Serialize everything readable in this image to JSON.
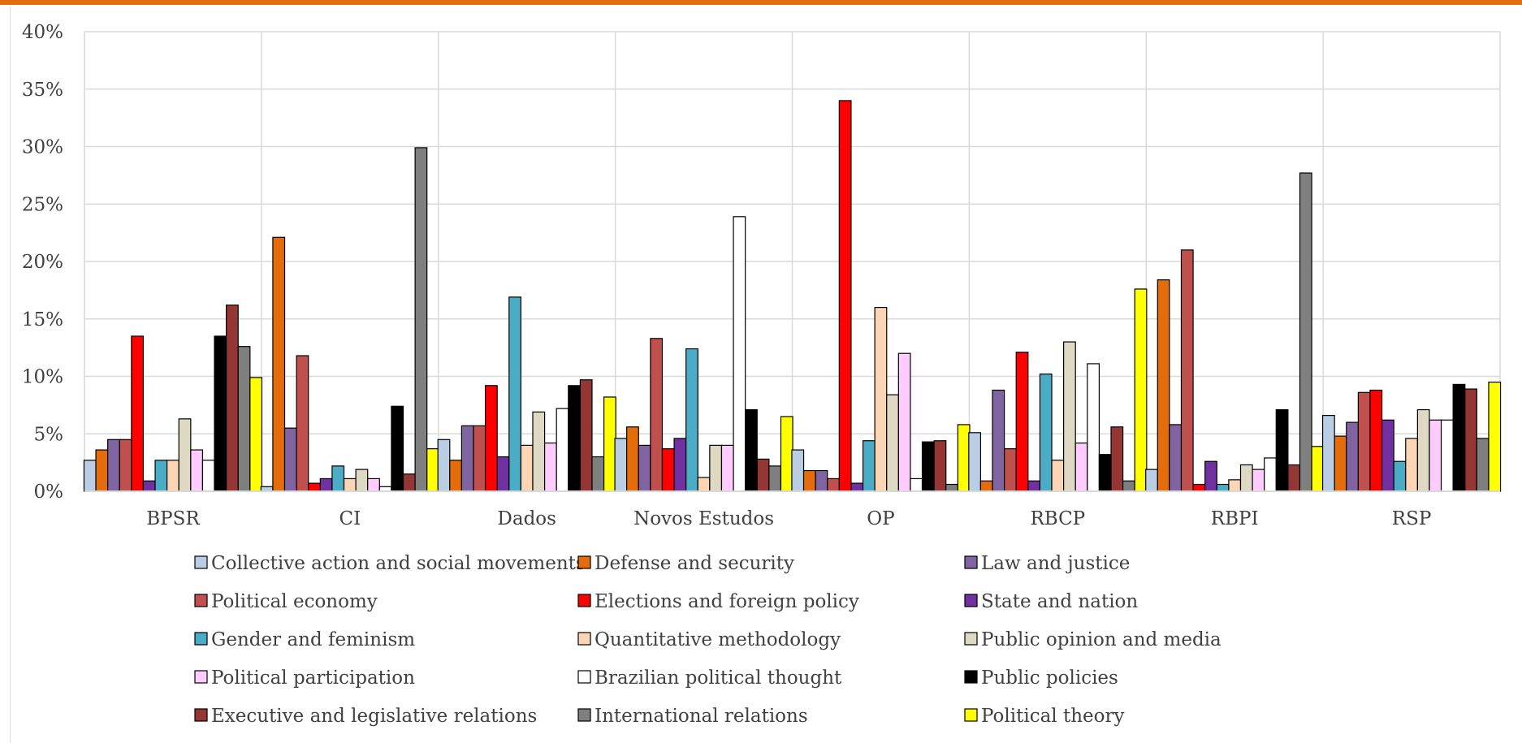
{
  "chart_data": {
    "type": "bar",
    "title": "",
    "xlabel": "",
    "ylabel": "",
    "ylim": [
      0,
      40
    ],
    "y_ticks": [
      "0%",
      "5%",
      "10%",
      "15%",
      "20%",
      "25%",
      "30%",
      "35%",
      "40%"
    ],
    "y_tick_values": [
      0,
      5,
      10,
      15,
      20,
      25,
      30,
      35,
      40
    ],
    "grid": true,
    "legend_position": "bottom",
    "categories": [
      "BPSR",
      "CI",
      "Dados",
      "Novos Estudos",
      "OP",
      "RBCP",
      "RBPI",
      "RSP"
    ],
    "series": [
      {
        "name": "Collective action and social movements",
        "color": "#B9CDE5",
        "values": [
          2.7,
          0.4,
          4.5,
          4.6,
          3.6,
          5.1,
          1.9,
          6.6
        ]
      },
      {
        "name": "Defense and security",
        "color": "#E46C0A",
        "values": [
          3.6,
          22.1,
          2.7,
          5.6,
          1.8,
          0.9,
          18.4,
          4.8
        ]
      },
      {
        "name": "Law and justice",
        "color": "#8064A2",
        "values": [
          4.5,
          5.5,
          5.7,
          4.0,
          1.8,
          8.8,
          5.8,
          6.0
        ]
      },
      {
        "name": "Political economy",
        "color": "#C0504D",
        "values": [
          4.5,
          11.8,
          5.7,
          13.3,
          1.1,
          3.7,
          21.0,
          8.6
        ]
      },
      {
        "name": "Elections and foreign policy",
        "color": "#FF0000",
        "values": [
          13.5,
          0.7,
          9.2,
          3.7,
          34.0,
          12.1,
          0.6,
          8.8
        ]
      },
      {
        "name": "State and nation",
        "color": "#7030A0",
        "values": [
          0.9,
          1.1,
          3.0,
          4.6,
          0.7,
          0.9,
          2.6,
          6.2
        ]
      },
      {
        "name": "Gender and feminism",
        "color": "#4BACC6",
        "values": [
          2.7,
          2.2,
          16.9,
          12.4,
          4.4,
          10.2,
          0.6,
          2.6
        ]
      },
      {
        "name": "Quantitative methodology",
        "color": "#FCD5B5",
        "values": [
          2.7,
          1.1,
          4.0,
          1.2,
          16.0,
          2.7,
          1.0,
          4.6
        ]
      },
      {
        "name": "Public opinion and media",
        "color": "#DDD9C3",
        "values": [
          6.3,
          1.9,
          6.9,
          4.0,
          8.4,
          13.0,
          2.3,
          7.1
        ]
      },
      {
        "name": "Political participation",
        "color": "#FFCCFF",
        "values": [
          3.6,
          1.1,
          4.2,
          4.0,
          12.0,
          4.2,
          1.9,
          6.2
        ]
      },
      {
        "name": "Brazilian political thought",
        "color": "#FFFFFF",
        "values": [
          2.7,
          0.4,
          7.2,
          23.9,
          1.1,
          11.1,
          2.9,
          6.2
        ]
      },
      {
        "name": "Public policies",
        "color": "#000000",
        "values": [
          13.5,
          7.4,
          9.2,
          7.1,
          4.3,
          3.2,
          7.1,
          9.3
        ]
      },
      {
        "name": "Executive and legislative relations",
        "color": "#943634",
        "values": [
          16.2,
          1.5,
          9.7,
          2.8,
          4.4,
          5.6,
          2.3,
          8.9
        ]
      },
      {
        "name": "International relations",
        "color": "#7F7F7F",
        "values": [
          12.6,
          29.9,
          3.0,
          2.2,
          0.6,
          0.9,
          27.7,
          4.6
        ]
      },
      {
        "name": "Political theory",
        "color": "#FFFF00",
        "values": [
          9.9,
          3.7,
          8.2,
          6.5,
          5.8,
          17.6,
          3.9,
          9.5
        ]
      }
    ]
  },
  "colors": {
    "top_rule": "#E46C0A",
    "gridline": "#d9d9d9",
    "text": "#404040",
    "bar_outline": "#000000"
  }
}
